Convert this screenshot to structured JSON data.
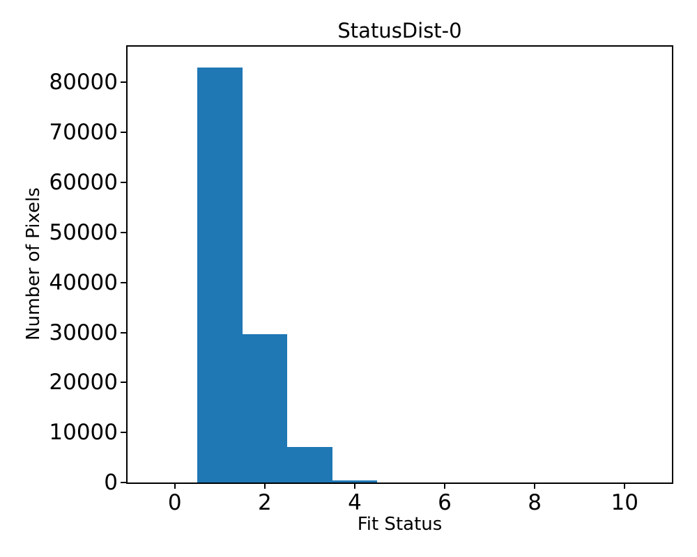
{
  "chart_data": {
    "type": "bar",
    "subtype": "histogram",
    "title": "StatusDist-0",
    "xlabel": "Fit Status",
    "ylabel": "Number of Pixels",
    "bar_color": "#1f77b4",
    "text_color": "#000000",
    "bin_width": 1,
    "bin_centers": [
      0,
      1,
      2,
      3,
      4,
      5,
      6,
      7,
      8,
      9,
      10
    ],
    "values": [
      0,
      83000,
      29600,
      7100,
      400,
      0,
      0,
      0,
      0,
      0,
      0
    ],
    "xticks": [
      0,
      2,
      4,
      6,
      8,
      10
    ],
    "yticks": [
      0,
      10000,
      20000,
      30000,
      40000,
      50000,
      60000,
      70000,
      80000
    ],
    "xlim": [
      -1.05,
      11.05
    ],
    "ylim": [
      0,
      87150
    ],
    "grid": false,
    "legend": null
  }
}
